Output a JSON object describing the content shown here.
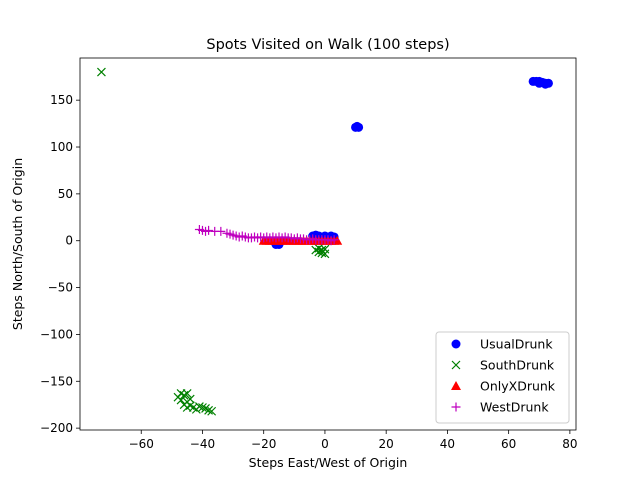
{
  "chart_data": {
    "type": "scatter",
    "title": "Spots Visited on Walk (100 steps)",
    "xlabel": "Steps East/West of Origin",
    "ylabel": "Steps North/South of Origin",
    "xlim": [
      -80,
      82
    ],
    "ylim": [
      -202,
      195
    ],
    "xticks": [
      -60,
      -40,
      -20,
      0,
      20,
      40,
      60,
      80
    ],
    "yticks": [
      -200,
      -150,
      -100,
      -50,
      0,
      50,
      100,
      150
    ],
    "grid": false,
    "legend_position": "lower-right",
    "series": [
      {
        "name": "UsualDrunk",
        "marker": "circle",
        "color": "#0000ff",
        "points": [
          [
            68,
            170
          ],
          [
            69,
            170
          ],
          [
            70,
            170
          ],
          [
            70,
            168
          ],
          [
            71,
            169
          ],
          [
            72,
            168
          ],
          [
            73,
            168
          ],
          [
            72,
            167
          ],
          [
            10,
            121
          ],
          [
            11,
            121
          ],
          [
            10.5,
            122
          ],
          [
            -16,
            -4
          ],
          [
            -15,
            -4
          ],
          [
            -15,
            -3
          ],
          [
            -4,
            5
          ],
          [
            -3,
            6
          ],
          [
            -2,
            5
          ],
          [
            -1,
            4
          ],
          [
            0,
            5
          ],
          [
            1,
            4
          ],
          [
            2,
            5
          ],
          [
            3,
            4
          ],
          [
            -3,
            3
          ],
          [
            1,
            2
          ],
          [
            2,
            3
          ]
        ]
      },
      {
        "name": "SouthDrunk",
        "marker": "x",
        "color": "#008000",
        "points": [
          [
            -73,
            180
          ],
          [
            -48,
            -167
          ],
          [
            -47,
            -163
          ],
          [
            -46,
            -165
          ],
          [
            -45,
            -163
          ],
          [
            -47,
            -170
          ],
          [
            -46,
            -175
          ],
          [
            -45,
            -172
          ],
          [
            -44,
            -176
          ],
          [
            -43,
            -178
          ],
          [
            -42,
            -180
          ],
          [
            -41,
            -177
          ],
          [
            -40,
            -178
          ],
          [
            -39,
            -179
          ],
          [
            -38,
            -181
          ],
          [
            -37,
            -182
          ],
          [
            -45,
            -178
          ],
          [
            -44,
            -169
          ],
          [
            -3,
            -10
          ],
          [
            -2,
            -12
          ],
          [
            -1,
            -13
          ],
          [
            0,
            -14
          ],
          [
            -1,
            -10
          ],
          [
            -2,
            -8
          ],
          [
            0,
            -9
          ]
        ]
      },
      {
        "name": "OnlyXDrunk",
        "marker": "triangle",
        "color": "#ff0000",
        "points": [
          [
            -20,
            0
          ],
          [
            -19,
            0
          ],
          [
            -18,
            0
          ],
          [
            -17,
            0
          ],
          [
            -16,
            0
          ],
          [
            -15,
            0
          ],
          [
            -14,
            0
          ],
          [
            -13,
            0
          ],
          [
            -12,
            0
          ],
          [
            -11,
            0
          ],
          [
            -10,
            0
          ],
          [
            -9,
            0
          ],
          [
            -8,
            0
          ],
          [
            -7,
            0
          ],
          [
            -6,
            0
          ],
          [
            -5,
            0
          ],
          [
            -4,
            0
          ],
          [
            -3,
            0
          ],
          [
            -2,
            0
          ],
          [
            -1,
            0
          ],
          [
            0,
            0
          ],
          [
            1,
            0
          ],
          [
            2,
            0
          ],
          [
            3,
            0
          ],
          [
            4,
            0
          ]
        ]
      },
      {
        "name": "WestDrunk",
        "marker": "plus",
        "color": "#bf00bf",
        "points": [
          [
            -41,
            12
          ],
          [
            -40,
            11
          ],
          [
            -39,
            10
          ],
          [
            -38,
            11
          ],
          [
            -36,
            10
          ],
          [
            -34,
            10
          ],
          [
            -32,
            8
          ],
          [
            -31,
            7
          ],
          [
            -30,
            6
          ],
          [
            -29,
            5
          ],
          [
            -28,
            4
          ],
          [
            -27,
            5
          ],
          [
            -26,
            4
          ],
          [
            -25,
            3
          ],
          [
            -24,
            3
          ],
          [
            -23,
            4
          ],
          [
            -22,
            3
          ],
          [
            -21,
            4
          ],
          [
            -20,
            3
          ],
          [
            -19,
            4
          ],
          [
            -18,
            3
          ],
          [
            -17,
            4
          ],
          [
            -16,
            3
          ],
          [
            -15,
            4
          ],
          [
            -14,
            3
          ],
          [
            -13,
            4
          ],
          [
            -12,
            3
          ],
          [
            -11,
            3
          ],
          [
            -10,
            2
          ],
          [
            -9,
            3
          ],
          [
            -8,
            2
          ],
          [
            -7,
            2
          ],
          [
            -6,
            1
          ],
          [
            -5,
            1
          ],
          [
            -4,
            2
          ],
          [
            -3,
            1
          ],
          [
            -2,
            1
          ],
          [
            -1,
            1
          ],
          [
            0,
            1
          ],
          [
            1,
            1
          ],
          [
            2,
            0
          ],
          [
            3,
            1
          ]
        ]
      }
    ]
  }
}
